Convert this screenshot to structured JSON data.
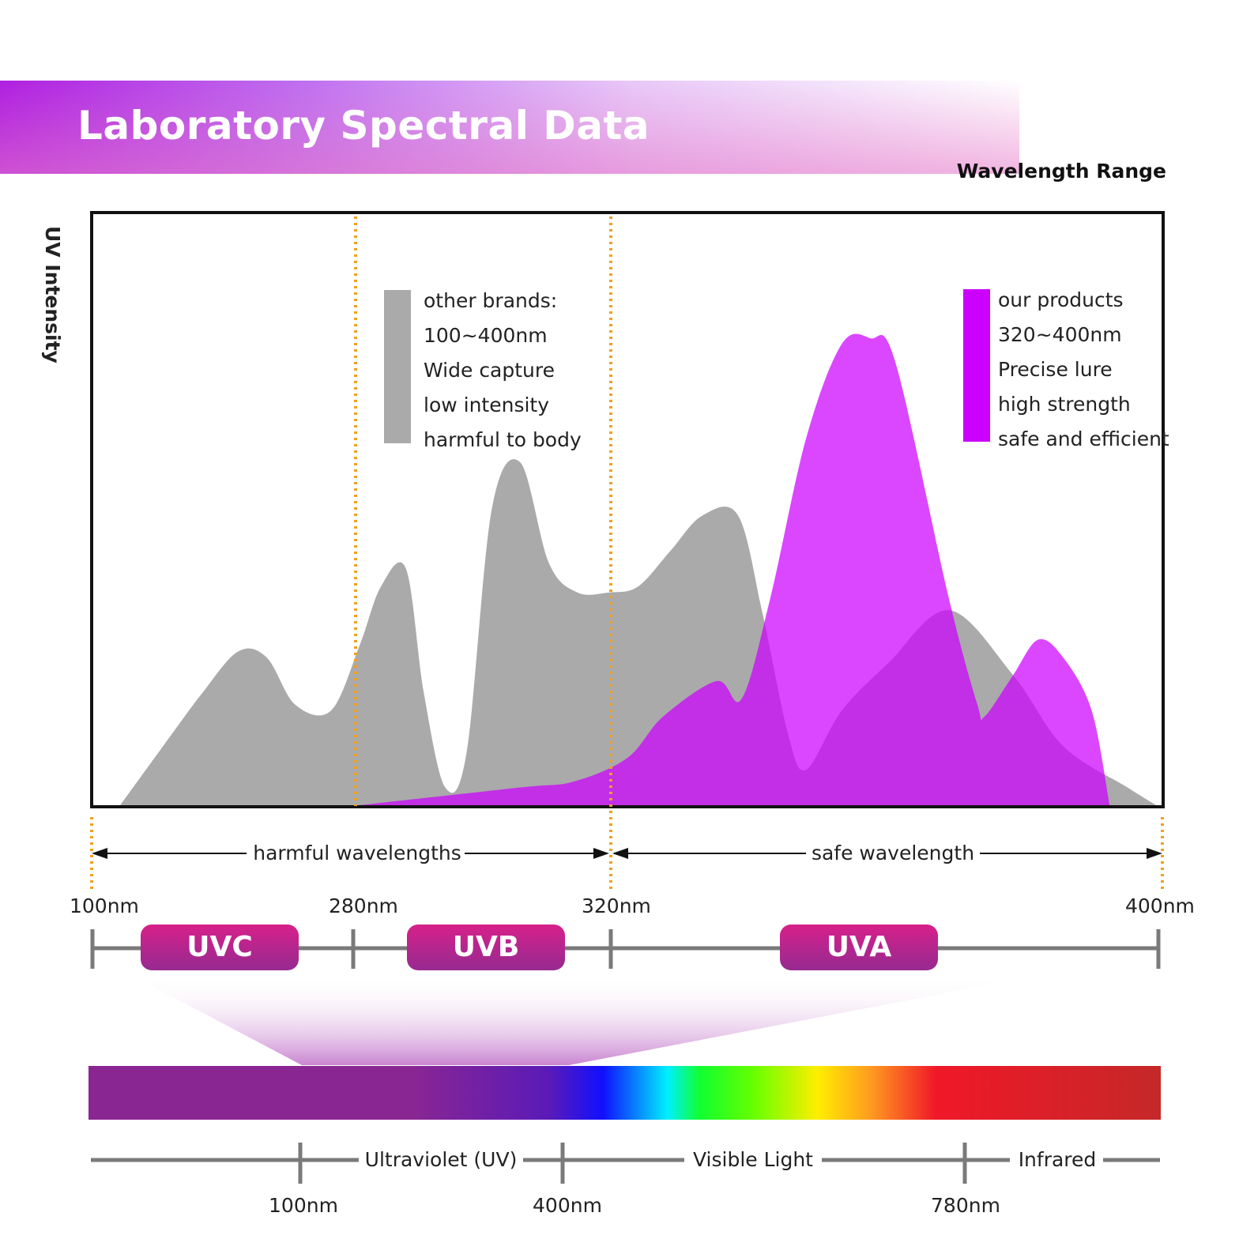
{
  "header": {
    "title": "Laboratory Spectral Data",
    "subtitle": "Wavelength Range"
  },
  "y_axis_label": "UV Intensity",
  "legend": {
    "other": {
      "lines": [
        "other brands:",
        "100~400nm",
        "Wide capture",
        "low intensity",
        "harmful to body"
      ],
      "color": "#aaaaaa"
    },
    "ours": {
      "lines": [
        "our products",
        "320~400nm",
        "Precise lure",
        "high strength",
        "safe and efficient"
      ],
      "color": "#cc00ff"
    }
  },
  "ranges": {
    "harmful": "harmful wavelengths",
    "safe": "safe wavelength"
  },
  "scale_labels": [
    "100nm",
    "280nm",
    "320nm",
    "400nm"
  ],
  "bands": [
    "UVC",
    "UVB",
    "UVA"
  ],
  "spectrum": {
    "segments": [
      "Ultraviolet (UV)",
      "Visible Light",
      "Infrared"
    ],
    "ticks": [
      "100nm",
      "400nm",
      "780nm"
    ]
  },
  "chart_data": {
    "type": "area",
    "xlabel": "Wavelength Range",
    "ylabel": "UV Intensity",
    "x_unit": "nm",
    "xlim": [
      100,
      400
    ],
    "ylim": [
      0,
      100
    ],
    "grid": false,
    "legend_position": "inside, top",
    "markers": [
      280,
      320
    ],
    "series": [
      {
        "name": "other brands",
        "color": "#aaaaaa",
        "x": [
          108,
          120,
          131,
          141,
          149,
          157,
          167,
          175,
          181,
          188,
          193,
          199,
          205,
          212,
          220,
          228,
          236,
          245,
          253,
          262,
          271,
          281,
          288,
          295,
          300,
          310,
          323,
          340,
          358,
          372,
          390,
          398
        ],
        "y": [
          0,
          10,
          19,
          26,
          25,
          17,
          16,
          27,
          37,
          40,
          19,
          3,
          9,
          50,
          58,
          41,
          36,
          36,
          37,
          43,
          49,
          49,
          32,
          12,
          6,
          16,
          24,
          33,
          22,
          10,
          3,
          0
        ]
      },
      {
        "name": "our products",
        "color": "#cc00ff",
        "x": [
          175,
          220,
          235,
          250,
          260,
          275,
          282,
          290,
          300,
          310,
          318,
          325,
          340,
          348,
          350,
          358,
          365,
          372,
          380,
          385
        ],
        "y": [
          0,
          3,
          4,
          8,
          15,
          21,
          18,
          35,
          62,
          78,
          79,
          75,
          35,
          17,
          15,
          22,
          28,
          25,
          16,
          0
        ]
      }
    ]
  }
}
